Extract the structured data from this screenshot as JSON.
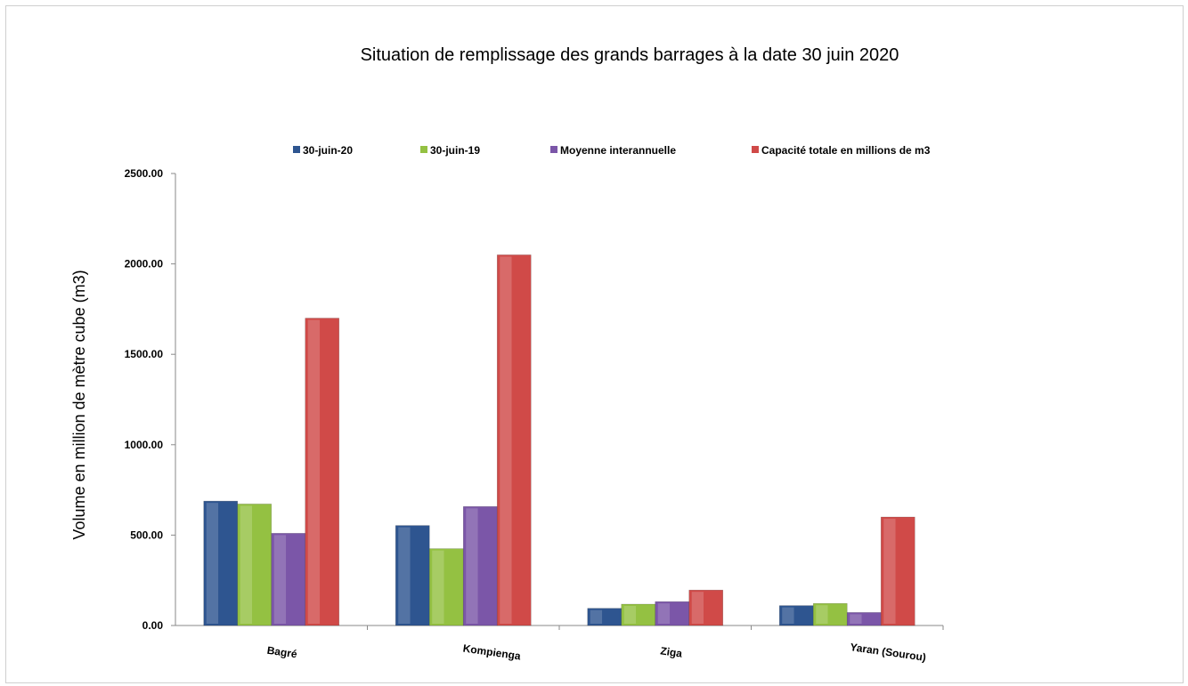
{
  "chart_data": {
    "type": "bar",
    "title": "Situation de remplissage des grands barrages à la date  30 juin 2020",
    "ylabel": "Volume en million de mètre cube (m3)",
    "xlabel": "",
    "categories": [
      "Bagré",
      "Kompienga",
      "Ziga",
      "Yaran (Sourou)"
    ],
    "series": [
      {
        "name": "30-juin-20",
        "values": [
          688,
          553,
          95,
          110
        ],
        "color": "#2E5590"
      },
      {
        "name": "30-juin-19",
        "values": [
          672,
          425,
          118,
          122
        ],
        "color": "#94C142"
      },
      {
        "name": "Moyenne interannuelle",
        "values": [
          510,
          658,
          132,
          72
        ],
        "color": "#7B56A8"
      },
      {
        "name": "Capacité totale en millions de m3",
        "values": [
          1700,
          2050,
          196,
          600
        ],
        "color": "#D04A48"
      }
    ],
    "ylim": [
      0,
      2500
    ],
    "yticks": [
      0,
      500,
      1000,
      1500,
      2000,
      2500
    ],
    "ytick_labels": [
      "0.00",
      "500.00",
      "1000.00",
      "1500.00",
      "2000.00",
      "2500.00"
    ],
    "legend_position": "top",
    "grid": false
  }
}
